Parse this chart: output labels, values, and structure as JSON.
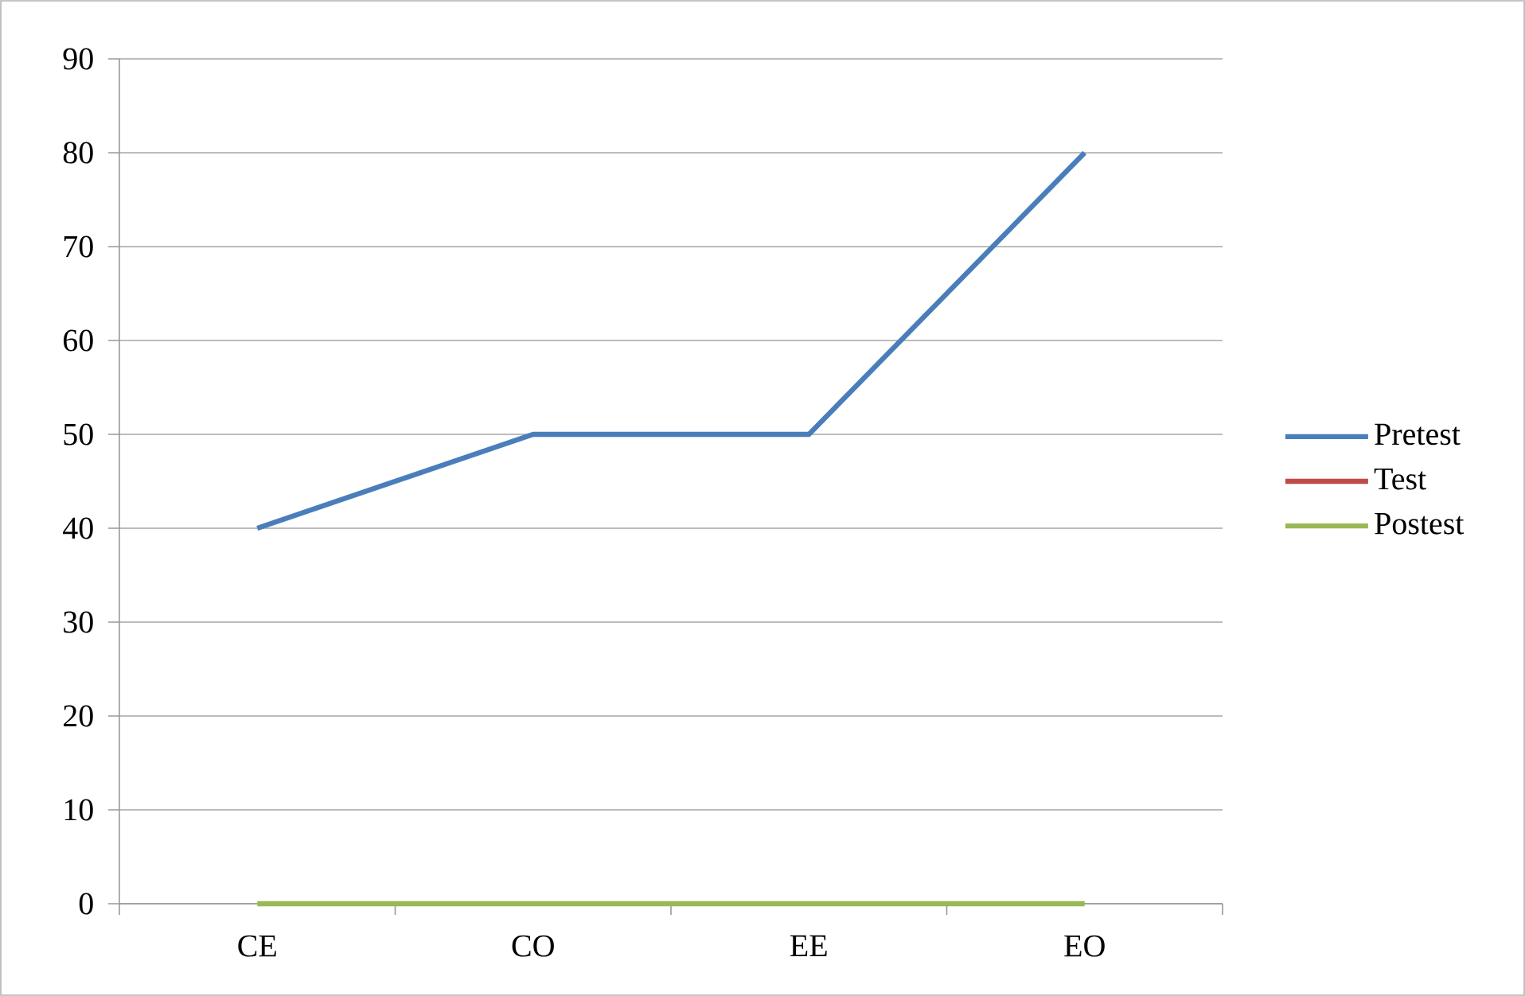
{
  "chart_data": {
    "type": "line",
    "categories": [
      "CE",
      "CO",
      "EE",
      "EO"
    ],
    "series": [
      {
        "name": "Pretest",
        "color": "#4a7ebb",
        "values": [
          40,
          50,
          50,
          80
        ]
      },
      {
        "name": "Test",
        "color": "#be4b48",
        "values": [
          null,
          null,
          null,
          null
        ]
      },
      {
        "name": "Postest",
        "color": "#98b954",
        "values": [
          0,
          0,
          0,
          0
        ]
      }
    ],
    "ylim": [
      0,
      90
    ],
    "yticks": [
      0,
      10,
      20,
      30,
      40,
      50,
      60,
      70,
      80,
      90
    ],
    "grid": "y",
    "legend": "right",
    "marker": "none",
    "line_style": "solid"
  }
}
